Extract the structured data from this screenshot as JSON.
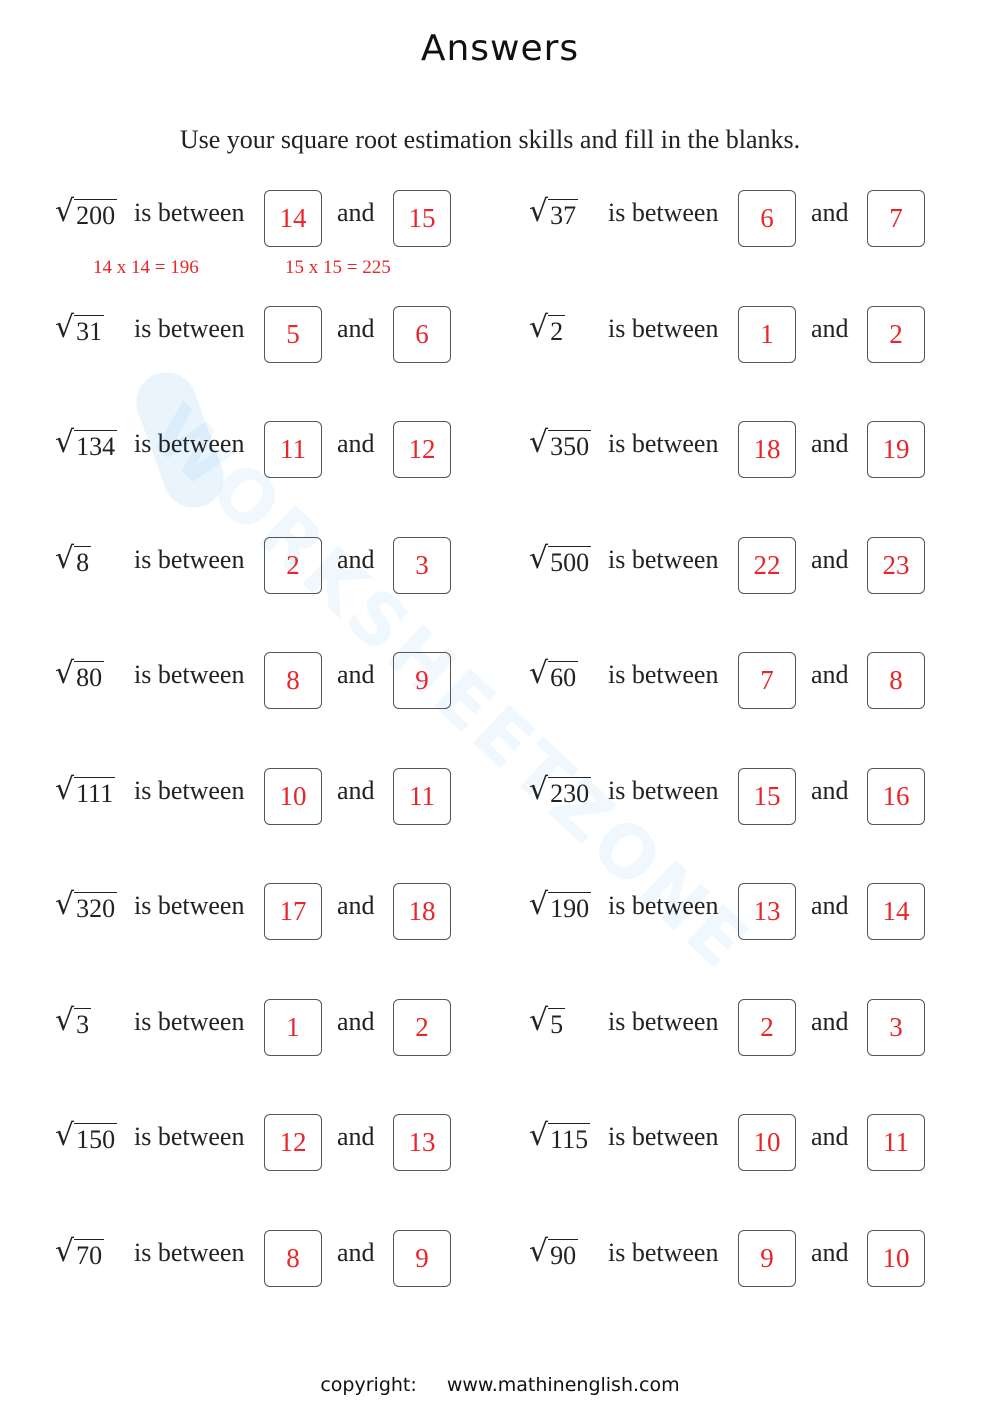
{
  "title": "Answers",
  "instructions": "Use your square root estimation skills and fill in the blanks.",
  "watermark": "WORKSHEETZONE",
  "labels": {
    "between": "is between",
    "and": "and"
  },
  "problems": [
    {
      "radicand": "200",
      "low": "14",
      "high": "15"
    },
    {
      "radicand": "37",
      "low": "6",
      "high": "7"
    },
    {
      "radicand": "31",
      "low": "5",
      "high": "6"
    },
    {
      "radicand": "2",
      "low": "1",
      "high": "2"
    },
    {
      "radicand": "134",
      "low": "11",
      "high": "12"
    },
    {
      "radicand": "350",
      "low": "18",
      "high": "19"
    },
    {
      "radicand": "8",
      "low": "2",
      "high": "3"
    },
    {
      "radicand": "500",
      "low": "22",
      "high": "23"
    },
    {
      "radicand": "80",
      "low": "8",
      "high": "9"
    },
    {
      "radicand": "60",
      "low": "7",
      "high": "8"
    },
    {
      "radicand": "111",
      "low": "10",
      "high": "11"
    },
    {
      "radicand": "230",
      "low": "15",
      "high": "16"
    },
    {
      "radicand": "320",
      "low": "17",
      "high": "18"
    },
    {
      "radicand": "190",
      "low": "13",
      "high": "14"
    },
    {
      "radicand": "3",
      "low": "1",
      "high": "2"
    },
    {
      "radicand": "5",
      "low": "2",
      "high": "3"
    },
    {
      "radicand": "150",
      "low": "12",
      "high": "13"
    },
    {
      "radicand": "115",
      "low": "10",
      "high": "11"
    },
    {
      "radicand": "70",
      "low": "8",
      "high": "9"
    },
    {
      "radicand": "90",
      "low": "9",
      "high": "10"
    }
  ],
  "example_notes": [
    "14 x 14 = 196",
    "15 x 15 = 225"
  ],
  "answer_color": "#e8262a",
  "footer": {
    "label": "copyright:",
    "url": "www.mathinenglish.com"
  }
}
